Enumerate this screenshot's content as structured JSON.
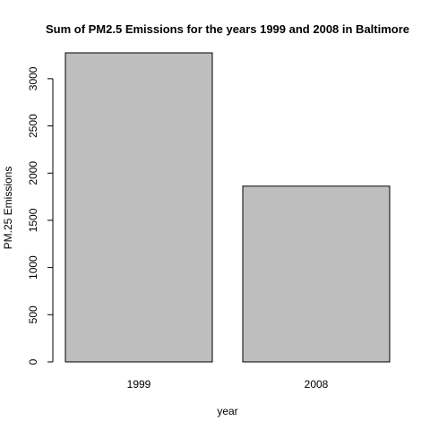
{
  "chart_data": {
    "type": "bar",
    "title": "Sum of PM2.5 Emissions for the years 1999 and 2008 in Baltimore",
    "xlabel": "year",
    "ylabel": "PM.25  Emissions",
    "categories": [
      "1999",
      "2008"
    ],
    "values": [
      3274,
      1862
    ],
    "ylim": [
      0,
      3274
    ],
    "yticks": [
      0,
      500,
      1000,
      1500,
      2000,
      2500,
      3000
    ],
    "grid": false,
    "colors": {
      "bar_fill": "#bebebe",
      "bar_stroke": "#000000"
    }
  }
}
